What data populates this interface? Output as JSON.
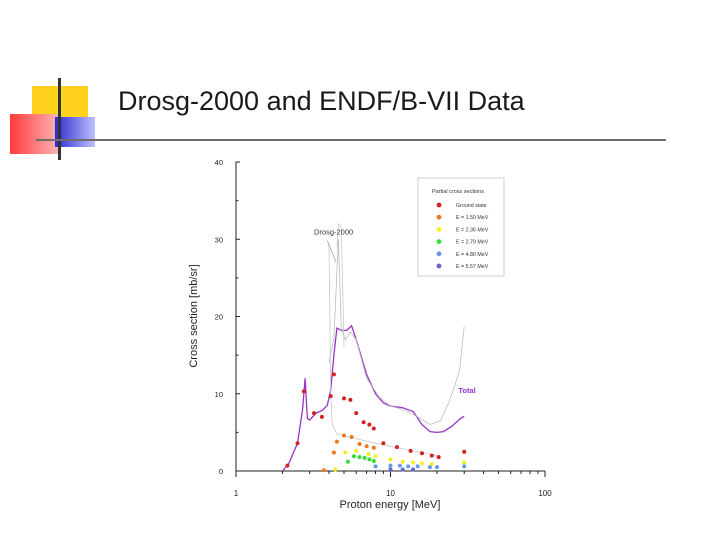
{
  "slide": {
    "title": "Drosg-2000 and ENDF/B-VII Data",
    "colors": {
      "yellow": "#ffd21e",
      "red": "#ff4a4a",
      "blue": "#3a3acf",
      "rule": "#6d6d6d"
    }
  },
  "chart_data": {
    "type": "scatter",
    "xscale": "log",
    "xlabel": "Proton energy [MeV]",
    "ylabel": "Cross section [mb/sr]",
    "xlim": [
      1,
      100
    ],
    "ylim": [
      0,
      40
    ],
    "xticks": [
      1,
      10,
      100
    ],
    "xtick_labels": [
      "1",
      "10",
      "100"
    ],
    "yticks": [
      0,
      10,
      20,
      30,
      40
    ],
    "ytick_labels": [
      "0",
      "10",
      "20",
      "30",
      "40"
    ],
    "grid": false,
    "legend": {
      "title": "Partial cross sections",
      "placement": "top-right",
      "entries": [
        {
          "label": "Ground state",
          "color": "#d42020"
        },
        {
          "label": "E = 1.50 MeV",
          "color": "#ee7722"
        },
        {
          "label": "E = 2.36 MeV",
          "color": "#f2ee22"
        },
        {
          "label": "E = 2.79 MeV",
          "color": "#33dd33"
        },
        {
          "label": "E = 4.80 MeV",
          "color": "#6699ee"
        },
        {
          "label": "E = 5.57 MeV",
          "color": "#6666cc"
        }
      ]
    },
    "annotations": [
      {
        "text": "Drosg-2000",
        "x": 3.2,
        "y": 30.6
      },
      {
        "text": "Total",
        "x": 27.5,
        "y": 10.1,
        "color": "#9933cc"
      }
    ],
    "series": [
      {
        "color": "#9933cc",
        "style": "line",
        "points": [
          [
            2.0,
            0
          ],
          [
            2.2,
            1
          ],
          [
            2.5,
            3.6
          ],
          [
            2.7,
            8
          ],
          [
            2.8,
            12
          ],
          [
            2.9,
            6.8
          ],
          [
            3.0,
            6.6
          ],
          [
            3.3,
            7.5
          ],
          [
            3.6,
            7.8
          ],
          [
            3.9,
            8.5
          ],
          [
            4.1,
            10.5
          ],
          [
            4.3,
            15
          ],
          [
            4.5,
            18.5
          ],
          [
            4.8,
            18.2
          ],
          [
            5.2,
            18.2
          ],
          [
            5.6,
            18.8
          ],
          [
            6.0,
            17
          ],
          [
            7.0,
            12.5
          ],
          [
            8.0,
            10
          ],
          [
            9.0,
            8.8
          ],
          [
            10,
            8.4
          ],
          [
            12,
            8.2
          ],
          [
            14,
            7.7
          ],
          [
            16,
            6
          ],
          [
            18,
            5.1
          ],
          [
            20,
            5.0
          ],
          [
            22,
            5.1
          ],
          [
            25,
            5.8
          ],
          [
            28,
            6.7
          ],
          [
            30,
            7.1
          ]
        ]
      },
      {
        "color": "#bbbbbb",
        "style": "line",
        "points": [
          [
            4.0,
            14
          ],
          [
            4.3,
            17.2
          ],
          [
            4.6,
            30
          ],
          [
            4.8,
            18.5
          ],
          [
            5.1,
            17
          ],
          [
            5.5,
            18
          ],
          [
            6.0,
            17
          ],
          [
            7.0,
            12
          ],
          [
            8.5,
            9.5
          ],
          [
            10,
            8.4
          ],
          [
            12,
            8
          ],
          [
            15,
            7
          ],
          [
            18,
            6
          ],
          [
            21,
            6.5
          ],
          [
            24,
            9
          ],
          [
            26,
            11
          ],
          [
            28,
            13
          ],
          [
            30,
            18.7
          ]
        ]
      },
      {
        "color": "#c8c8c8",
        "style": "line",
        "points": [
          [
            4.0,
            29.5
          ],
          [
            4.1,
            10
          ],
          [
            4.2,
            6
          ],
          [
            4.5,
            4.8
          ],
          [
            5,
            4.6
          ],
          [
            6,
            4.2
          ],
          [
            8,
            3.6
          ],
          [
            10,
            3.2
          ],
          [
            14,
            2.6
          ],
          [
            18,
            2.2
          ],
          [
            20,
            2.0
          ]
        ]
      },
      {
        "color": "#c8c8c8",
        "style": "line",
        "points": [
          [
            4.5,
            29
          ],
          [
            4.6,
            32
          ],
          [
            4.8,
            31.5
          ],
          [
            5,
            16
          ]
        ]
      },
      {
        "name": "Ground state",
        "color": "#d42020",
        "style": "points",
        "points": [
          [
            2.15,
            0.7
          ],
          [
            2.5,
            3.6
          ],
          [
            2.75,
            10.3
          ],
          [
            3.2,
            7.5
          ],
          [
            3.6,
            7.0
          ],
          [
            4.1,
            9.7
          ],
          [
            4.3,
            12.5
          ],
          [
            5.0,
            9.4
          ],
          [
            5.5,
            9.2
          ],
          [
            6.0,
            7.5
          ],
          [
            6.7,
            6.3
          ],
          [
            7.3,
            6.0
          ],
          [
            7.8,
            5.5
          ],
          [
            9.0,
            3.6
          ],
          [
            11,
            3.1
          ],
          [
            13.5,
            2.6
          ],
          [
            16,
            2.3
          ],
          [
            18.5,
            2.0
          ],
          [
            20.5,
            1.8
          ],
          [
            30,
            2.5
          ]
        ]
      },
      {
        "name": "E = 1.50 MeV",
        "color": "#ee7722",
        "style": "points",
        "points": [
          [
            3.7,
            0.1
          ],
          [
            4.3,
            2.4
          ],
          [
            4.5,
            3.8
          ],
          [
            5.0,
            4.6
          ],
          [
            5.6,
            4.4
          ],
          [
            6.3,
            3.5
          ],
          [
            7.0,
            3.2
          ],
          [
            7.8,
            3.0
          ]
        ]
      },
      {
        "name": "E = 2.36 MeV",
        "color": "#f2ee22",
        "style": "points",
        "points": [
          [
            4.4,
            0.2
          ],
          [
            5.1,
            2.4
          ],
          [
            6.0,
            2.6
          ],
          [
            7.2,
            2.2
          ],
          [
            8.0,
            1.9
          ],
          [
            10,
            1.5
          ],
          [
            12,
            1.2
          ],
          [
            14,
            1.1
          ],
          [
            16,
            1.0
          ],
          [
            18.5,
            0.9
          ],
          [
            30,
            1.1
          ]
        ]
      },
      {
        "name": "E = 2.79 MeV",
        "color": "#33dd33",
        "style": "points",
        "points": [
          [
            5.3,
            1.2
          ],
          [
            5.8,
            1.9
          ],
          [
            6.3,
            1.8
          ],
          [
            6.8,
            1.7
          ],
          [
            7.3,
            1.5
          ],
          [
            7.8,
            1.3
          ]
        ]
      },
      {
        "name": "E = 4.80 MeV",
        "color": "#6699ee",
        "style": "points",
        "points": [
          [
            8.0,
            0.6
          ],
          [
            10,
            0.7
          ],
          [
            11.5,
            0.7
          ],
          [
            13,
            0.6
          ],
          [
            15,
            0.6
          ],
          [
            18,
            0.5
          ],
          [
            20,
            0.5
          ],
          [
            30,
            0.6
          ]
        ]
      },
      {
        "name": "E = 5.57 MeV",
        "color": "#6666cc",
        "style": "points",
        "points": [
          [
            10,
            0.2
          ],
          [
            12,
            0.2
          ],
          [
            14,
            0.2
          ]
        ]
      }
    ]
  }
}
